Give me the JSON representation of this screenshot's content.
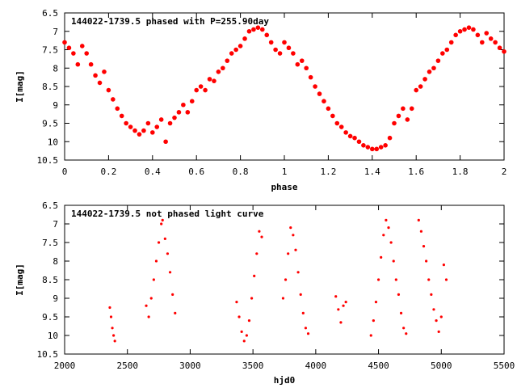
{
  "chart_data": [
    {
      "type": "scatter",
      "title": "144022-1739.5 phased with P=255.90day",
      "xlabel": "phase",
      "ylabel": "I[mag]",
      "xlim": [
        0,
        2
      ],
      "ylim": [
        10.5,
        6.5
      ],
      "y_inverted": true,
      "x_ticks": [
        0,
        0.2,
        0.4,
        0.6,
        0.8,
        1,
        1.2,
        1.4,
        1.6,
        1.8,
        2
      ],
      "x_tick_labels": [
        "0",
        "0.2",
        "0.4",
        "0.6",
        "0.8",
        "1",
        "1.2",
        "1.4",
        "1.6",
        "1.8",
        "2"
      ],
      "y_ticks": [
        6.5,
        7,
        7.5,
        8,
        8.5,
        9,
        9.5,
        10,
        10.5
      ],
      "y_tick_labels": [
        "6.5",
        "7",
        "7.5",
        "8",
        "8.5",
        "9",
        "9.5",
        "10",
        "10.5"
      ],
      "grid": false,
      "marker_color": "#ff0000",
      "series": [
        {
          "points": [
            [
              0.0,
              7.3
            ],
            [
              0.02,
              7.45
            ],
            [
              0.04,
              7.6
            ],
            [
              0.06,
              7.9
            ],
            [
              0.08,
              7.4
            ],
            [
              0.1,
              7.6
            ],
            [
              0.12,
              7.9
            ],
            [
              0.14,
              8.2
            ],
            [
              0.16,
              8.4
            ],
            [
              0.18,
              8.1
            ],
            [
              0.2,
              8.6
            ],
            [
              0.22,
              8.85
            ],
            [
              0.24,
              9.1
            ],
            [
              0.26,
              9.3
            ],
            [
              0.28,
              9.5
            ],
            [
              0.3,
              9.6
            ],
            [
              0.32,
              9.7
            ],
            [
              0.34,
              9.8
            ],
            [
              0.36,
              9.7
            ],
            [
              0.38,
              9.5
            ],
            [
              0.4,
              9.75
            ],
            [
              0.42,
              9.6
            ],
            [
              0.44,
              9.4
            ],
            [
              0.46,
              10.0
            ],
            [
              0.48,
              9.5
            ],
            [
              0.5,
              9.35
            ],
            [
              0.52,
              9.2
            ],
            [
              0.54,
              9.0
            ],
            [
              0.56,
              9.2
            ],
            [
              0.58,
              8.9
            ],
            [
              0.6,
              8.6
            ],
            [
              0.62,
              8.5
            ],
            [
              0.64,
              8.6
            ],
            [
              0.66,
              8.3
            ],
            [
              0.68,
              8.35
            ],
            [
              0.7,
              8.1
            ],
            [
              0.72,
              8.0
            ],
            [
              0.74,
              7.8
            ],
            [
              0.76,
              7.6
            ],
            [
              0.78,
              7.5
            ],
            [
              0.8,
              7.4
            ],
            [
              0.82,
              7.2
            ],
            [
              0.84,
              7.0
            ],
            [
              0.86,
              6.95
            ],
            [
              0.88,
              6.9
            ],
            [
              0.9,
              6.95
            ],
            [
              0.92,
              7.1
            ],
            [
              0.94,
              7.3
            ],
            [
              0.96,
              7.5
            ],
            [
              0.98,
              7.6
            ],
            [
              1.0,
              7.3
            ],
            [
              1.02,
              7.45
            ],
            [
              1.04,
              7.6
            ],
            [
              1.06,
              7.9
            ],
            [
              1.08,
              7.8
            ],
            [
              1.1,
              8.0
            ],
            [
              1.12,
              8.25
            ],
            [
              1.14,
              8.5
            ],
            [
              1.16,
              8.7
            ],
            [
              1.18,
              8.9
            ],
            [
              1.2,
              9.1
            ],
            [
              1.22,
              9.3
            ],
            [
              1.24,
              9.5
            ],
            [
              1.26,
              9.6
            ],
            [
              1.28,
              9.75
            ],
            [
              1.3,
              9.85
            ],
            [
              1.32,
              9.9
            ],
            [
              1.34,
              10.0
            ],
            [
              1.36,
              10.1
            ],
            [
              1.38,
              10.15
            ],
            [
              1.4,
              10.2
            ],
            [
              1.42,
              10.2
            ],
            [
              1.44,
              10.15
            ],
            [
              1.46,
              10.1
            ],
            [
              1.48,
              9.9
            ],
            [
              1.5,
              9.5
            ],
            [
              1.52,
              9.3
            ],
            [
              1.54,
              9.1
            ],
            [
              1.56,
              9.4
            ],
            [
              1.58,
              9.1
            ],
            [
              1.6,
              8.6
            ],
            [
              1.62,
              8.5
            ],
            [
              1.64,
              8.3
            ],
            [
              1.66,
              8.1
            ],
            [
              1.68,
              8.0
            ],
            [
              1.7,
              7.8
            ],
            [
              1.72,
              7.6
            ],
            [
              1.74,
              7.5
            ],
            [
              1.76,
              7.3
            ],
            [
              1.78,
              7.1
            ],
            [
              1.8,
              7.0
            ],
            [
              1.82,
              6.95
            ],
            [
              1.84,
              6.9
            ],
            [
              1.86,
              6.95
            ],
            [
              1.88,
              7.1
            ],
            [
              1.9,
              7.3
            ],
            [
              1.92,
              7.05
            ],
            [
              1.94,
              7.2
            ],
            [
              1.96,
              7.3
            ],
            [
              1.98,
              7.45
            ],
            [
              2.0,
              7.55
            ]
          ]
        }
      ]
    },
    {
      "type": "scatter",
      "title": "144022-1739.5 not phased light curve",
      "xlabel": "hjd0",
      "ylabel": "I[mag]",
      "xlim": [
        2000,
        5500
      ],
      "ylim": [
        10.5,
        6.5
      ],
      "y_inverted": true,
      "x_ticks": [
        2000,
        2500,
        3000,
        3500,
        4000,
        4500,
        5000,
        5500
      ],
      "x_tick_labels": [
        "2000",
        "2500",
        "3000",
        "3500",
        "4000",
        "4500",
        "5000",
        "5500"
      ],
      "y_ticks": [
        6.5,
        7,
        7.5,
        8,
        8.5,
        9,
        9.5,
        10,
        10.5
      ],
      "y_tick_labels": [
        "6.5",
        "7",
        "7.5",
        "8",
        "8.5",
        "9",
        "9.5",
        "10",
        "10.5"
      ],
      "grid": false,
      "marker_color": "#ff0000",
      "series": [
        {
          "points": [
            [
              2360,
              9.25
            ],
            [
              2370,
              9.5
            ],
            [
              2380,
              9.8
            ],
            [
              2390,
              10.0
            ],
            [
              2400,
              10.15
            ],
            [
              2650,
              9.2
            ],
            [
              2670,
              9.5
            ],
            [
              2690,
              9.0
            ],
            [
              2710,
              8.5
            ],
            [
              2730,
              8.0
            ],
            [
              2750,
              7.5
            ],
            [
              2770,
              7.0
            ],
            [
              2780,
              6.9
            ],
            [
              2800,
              7.4
            ],
            [
              2820,
              7.8
            ],
            [
              2840,
              8.3
            ],
            [
              2860,
              8.9
            ],
            [
              2880,
              9.4
            ],
            [
              3370,
              9.1
            ],
            [
              3390,
              9.5
            ],
            [
              3410,
              9.9
            ],
            [
              3430,
              10.15
            ],
            [
              3450,
              10.0
            ],
            [
              3470,
              9.6
            ],
            [
              3490,
              9.0
            ],
            [
              3510,
              8.4
            ],
            [
              3530,
              7.8
            ],
            [
              3550,
              7.2
            ],
            [
              3570,
              7.35
            ],
            [
              3740,
              9.0
            ],
            [
              3760,
              8.5
            ],
            [
              3780,
              7.8
            ],
            [
              3800,
              7.1
            ],
            [
              3820,
              7.3
            ],
            [
              3840,
              7.7
            ],
            [
              3860,
              8.3
            ],
            [
              3880,
              8.9
            ],
            [
              3900,
              9.4
            ],
            [
              3920,
              9.8
            ],
            [
              3940,
              9.95
            ],
            [
              4160,
              8.95
            ],
            [
              4180,
              9.3
            ],
            [
              4200,
              9.65
            ],
            [
              4220,
              9.2
            ],
            [
              4240,
              9.1
            ],
            [
              4440,
              10.0
            ],
            [
              4460,
              9.6
            ],
            [
              4480,
              9.1
            ],
            [
              4500,
              8.5
            ],
            [
              4520,
              7.9
            ],
            [
              4540,
              7.3
            ],
            [
              4560,
              6.9
            ],
            [
              4580,
              7.1
            ],
            [
              4600,
              7.5
            ],
            [
              4620,
              8.0
            ],
            [
              4640,
              8.5
            ],
            [
              4660,
              8.9
            ],
            [
              4680,
              9.4
            ],
            [
              4700,
              9.8
            ],
            [
              4720,
              9.95
            ],
            [
              4820,
              6.9
            ],
            [
              4840,
              7.2
            ],
            [
              4860,
              7.6
            ],
            [
              4880,
              8.0
            ],
            [
              4900,
              8.5
            ],
            [
              4920,
              8.9
            ],
            [
              4940,
              9.3
            ],
            [
              4960,
              9.6
            ],
            [
              4980,
              9.9
            ],
            [
              5000,
              9.5
            ],
            [
              5020,
              8.1
            ],
            [
              5040,
              8.5
            ]
          ]
        }
      ]
    }
  ]
}
